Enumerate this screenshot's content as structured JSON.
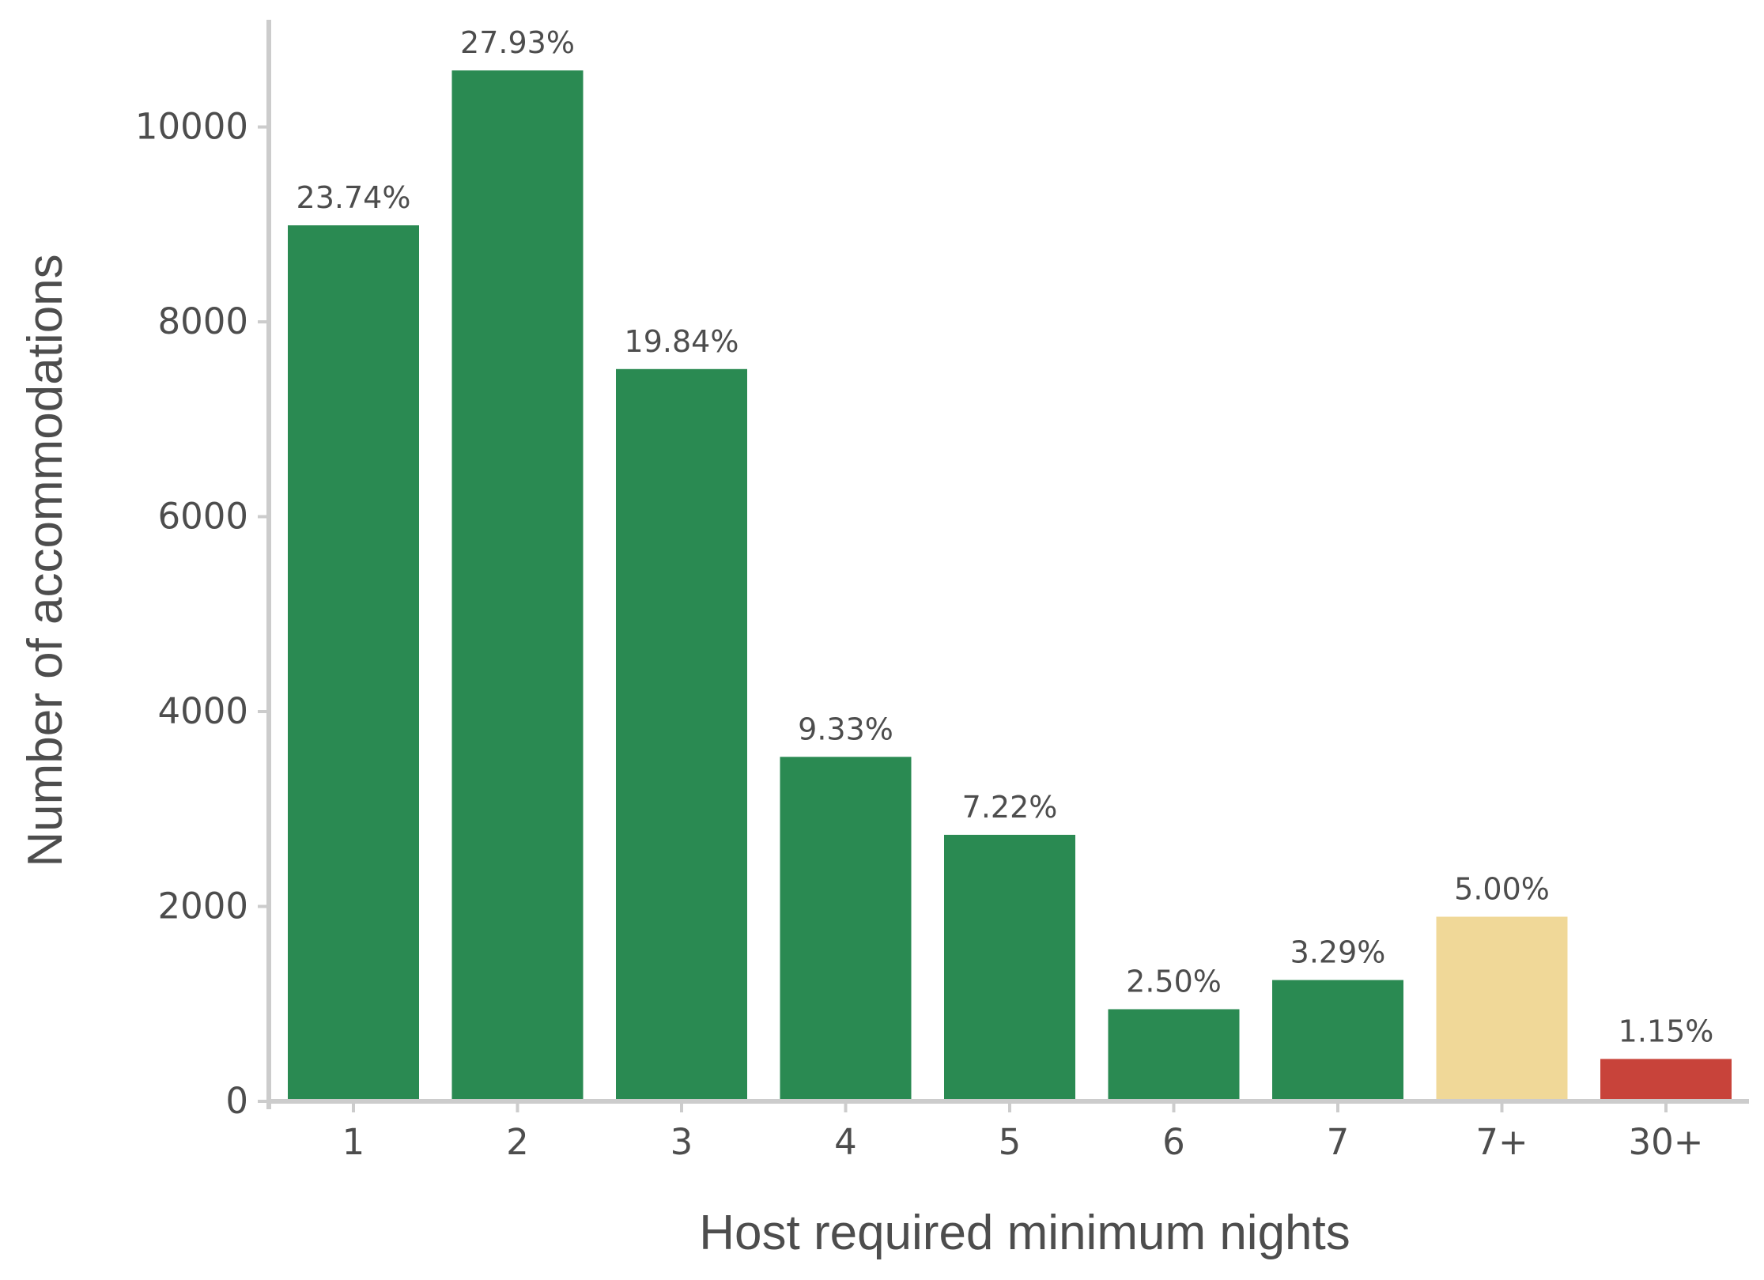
{
  "chart_data": {
    "type": "bar",
    "xlabel": "Host required minimum nights",
    "ylabel": "Number of accommodations",
    "categories": [
      "1",
      "2",
      "3",
      "4",
      "5",
      "6",
      "7",
      "7+",
      "30+"
    ],
    "values": [
      8990,
      10580,
      7515,
      3535,
      2735,
      945,
      1245,
      1895,
      435
    ],
    "labels": [
      "23.74%",
      "27.93%",
      "19.84%",
      "9.33%",
      "7.22%",
      "2.50%",
      "3.29%",
      "5.00%",
      "1.15%"
    ],
    "bar_colors": [
      "#2a8a52",
      "#2a8a52",
      "#2a8a52",
      "#2a8a52",
      "#2a8a52",
      "#2a8a52",
      "#2a8a52",
      "#f0d898",
      "#c8433a"
    ],
    "yticks": [
      0,
      2000,
      4000,
      6000,
      8000,
      10000
    ],
    "ylim": [
      0,
      11100
    ],
    "grid": false,
    "axis_color": "#cccccc",
    "text_color": "#4d4d4d"
  }
}
